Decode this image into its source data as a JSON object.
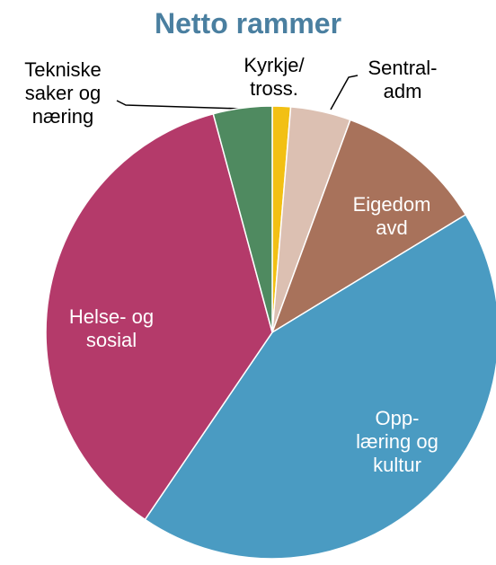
{
  "chart_data": {
    "type": "pie",
    "title": "Netto rammer",
    "categories": [
      "Kyrkje/\ntross.",
      "Sentral-\nadm",
      "Eigedom\navd",
      "Opp-\nlæring og\nkultur",
      "Helse- og\nsosial",
      "Tekniske\nsaker og\nnæring"
    ],
    "values": [
      1.3,
      4.3,
      10.7,
      43.2,
      36.3,
      4.2
    ],
    "colors": [
      "#f2c014",
      "#dcc0b2",
      "#a8725b",
      "#4a9bc2",
      "#b43a6a",
      "#4f8a60"
    ]
  }
}
